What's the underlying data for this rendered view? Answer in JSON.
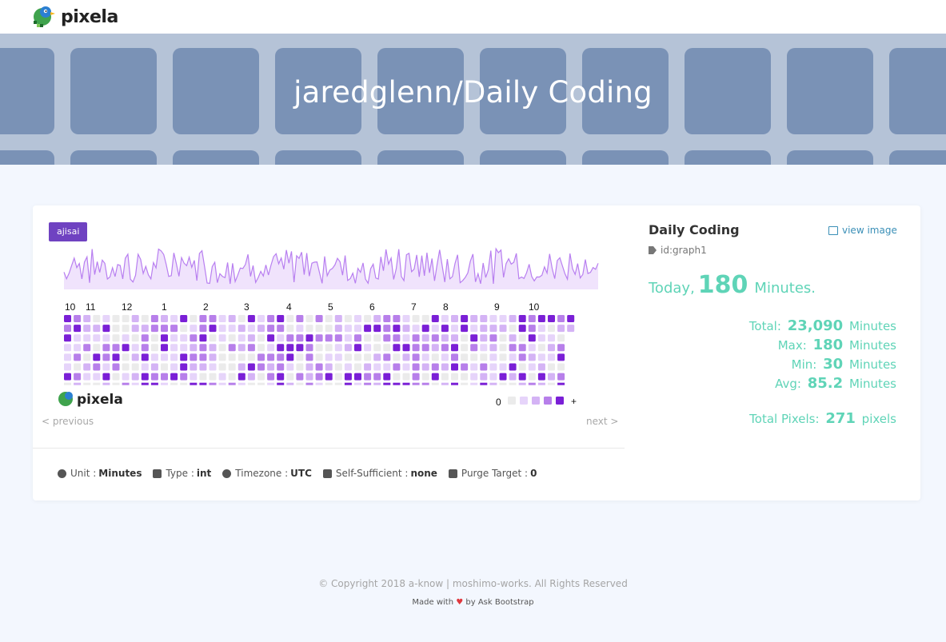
{
  "nav": {
    "brand": "pixela"
  },
  "hero": {
    "title": "jaredglenn/Daily Coding"
  },
  "graph": {
    "badge": "ajisai",
    "month_labels": [
      "10",
      "11",
      "12",
      "1",
      "2",
      "3",
      "4",
      "5",
      "6",
      "7",
      "8",
      "9",
      "10"
    ],
    "legend_min": "0",
    "legend_max": "+",
    "watermark": "pixela",
    "prev_label": "< previous",
    "next_label": "next >"
  },
  "props": [
    {
      "icon": "user-circle-icon",
      "label": "Unit",
      "value": "Minutes"
    },
    {
      "icon": "type-icon",
      "label": "Type",
      "value": "int"
    },
    {
      "icon": "globe-icon",
      "label": "Timezone",
      "value": "UTC"
    },
    {
      "icon": "self-sufficient-icon",
      "label": "Self-Sufficient",
      "value": "none"
    },
    {
      "icon": "trash-icon",
      "label": "Purge Target",
      "value": "0"
    }
  ],
  "side": {
    "title": "Daily Coding",
    "view_image": "view image",
    "graph_id": "id:graph1",
    "today_prefix": "Today",
    "today_sep": ",",
    "today_value": "180",
    "today_unit": "Minutes.",
    "stats": [
      {
        "label": "Total:",
        "value": "23,090",
        "unit": "Minutes"
      },
      {
        "label": "Max:",
        "value": "180",
        "unit": "Minutes"
      },
      {
        "label": "Min:",
        "value": "30",
        "unit": "Minutes"
      },
      {
        "label": "Avg:",
        "value": "85.2",
        "unit": "Minutes"
      }
    ],
    "total_pixels_label": "Total Pixels:",
    "total_pixels_value": "271",
    "total_pixels_unit": "pixels"
  },
  "footer": {
    "copyright": "© Copyright 2018 a-know | moshimo-works. All Rights Reserved",
    "made_with": "Made with",
    "made_by": "by Ask Bootstrap"
  },
  "colors": {
    "level0": "#ebebeb",
    "level1": "#e6d4fa",
    "level2": "#d4b3f5",
    "level3": "#b77fea",
    "level4": "#7a1fd6",
    "accent": "#5fd4b7"
  }
}
